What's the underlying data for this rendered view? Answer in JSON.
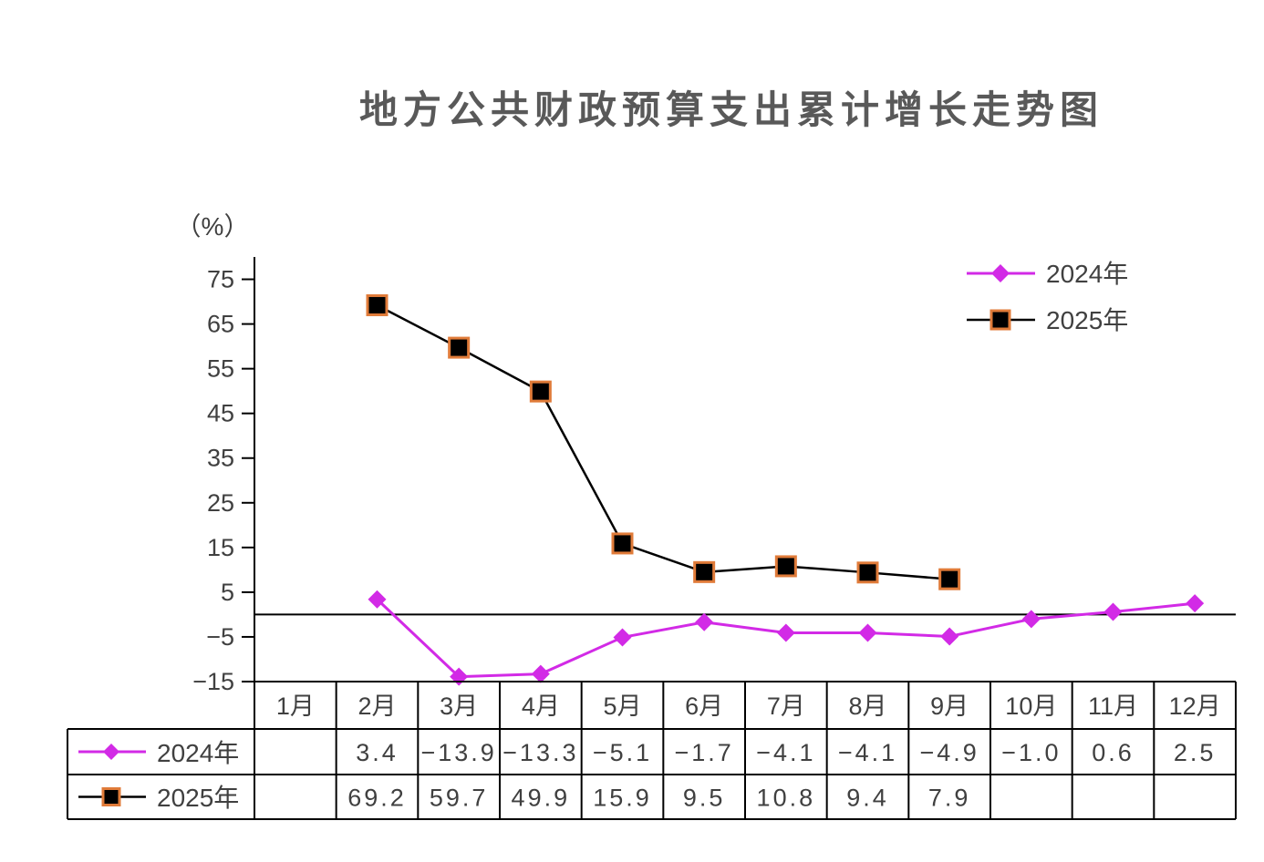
{
  "chart_data": {
    "type": "line",
    "title": "地方公共财政预算支出累计增长走势图",
    "ylabel": "（%）",
    "categories": [
      "1月",
      "2月",
      "3月",
      "4月",
      "5月",
      "6月",
      "7月",
      "8月",
      "9月",
      "10月",
      "11月",
      "12月"
    ],
    "ylim": [
      -15,
      80
    ],
    "yticks": [
      75,
      65,
      55,
      45,
      35,
      25,
      15,
      5,
      -5,
      -15
    ],
    "grid": false,
    "zero_line": true,
    "legend_position": "top-right",
    "data_table": true,
    "series": [
      {
        "name": "2024年",
        "color": "#D22AE6",
        "marker": "diamond",
        "marker_fill": "#D22AE6",
        "marker_edge": "#D22AE6",
        "values": [
          null,
          3.4,
          -13.9,
          -13.3,
          -5.1,
          -1.7,
          -4.1,
          -4.1,
          -4.9,
          -1.0,
          0.6,
          2.5
        ]
      },
      {
        "name": "2025年",
        "color": "#000000",
        "marker": "square",
        "marker_fill": "#000000",
        "marker_edge": "#E07B39",
        "values": [
          null,
          69.2,
          59.7,
          49.9,
          15.9,
          9.5,
          10.8,
          9.4,
          7.9,
          null,
          null,
          null
        ]
      }
    ]
  }
}
